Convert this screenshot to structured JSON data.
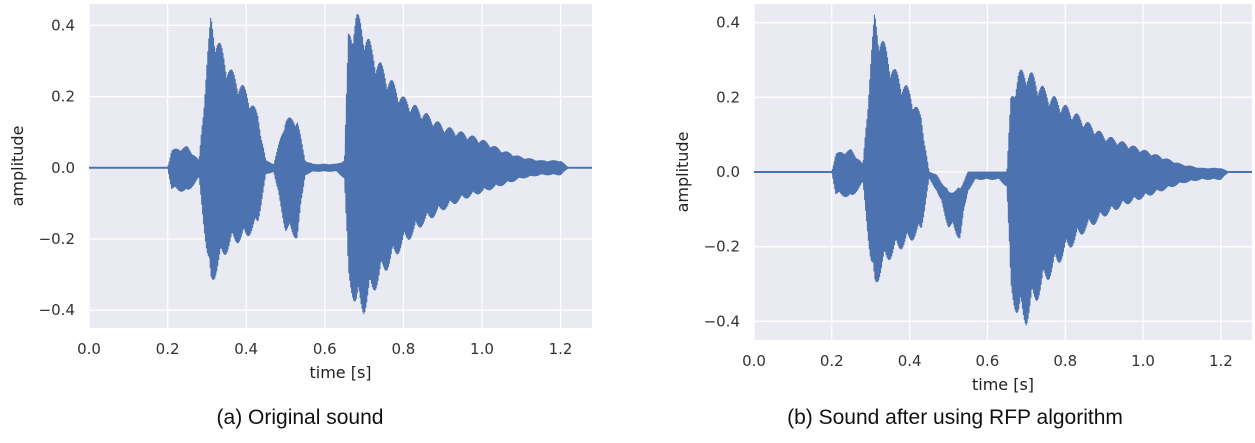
{
  "colors": {
    "background": "#eaeaf2",
    "grid": "#ffffff",
    "line": "#4c72b0"
  },
  "chart_data": [
    {
      "type": "line",
      "caption": "(a) Original sound",
      "xlabel": "time [s]",
      "ylabel": "amplitude",
      "xlim": [
        0.0,
        1.28
      ],
      "ylim": [
        -0.45,
        0.46
      ],
      "xticks": [
        0.0,
        0.2,
        0.4,
        0.6,
        0.8,
        1.0,
        1.2
      ],
      "yticks": [
        -0.4,
        -0.2,
        0.0,
        0.2,
        0.4
      ],
      "xtick_labels": [
        "0.0",
        "0.2",
        "0.4",
        "0.6",
        "0.8",
        "1.0",
        "1.2"
      ],
      "ytick_labels": [
        "−0.4",
        "−0.2",
        "0.0",
        "0.2",
        "0.4"
      ],
      "grid": true,
      "series": [
        {
          "envelope_time": [
            0.0,
            0.2,
            0.21,
            0.25,
            0.28,
            0.3,
            0.31,
            0.33,
            0.36,
            0.4,
            0.43,
            0.45,
            0.47,
            0.5,
            0.53,
            0.55,
            0.57,
            0.6,
            0.63,
            0.65,
            0.66,
            0.68,
            0.7,
            0.72,
            0.75,
            0.8,
            0.85,
            0.9,
            0.95,
            1.0,
            1.05,
            1.1,
            1.15,
            1.2,
            1.22,
            1.28
          ],
          "envelope_upper": [
            0.0,
            0.0,
            0.05,
            0.06,
            0.02,
            0.3,
            0.43,
            0.36,
            0.28,
            0.22,
            0.15,
            0.02,
            0.01,
            0.14,
            0.14,
            0.02,
            0.01,
            0.01,
            0.01,
            0.02,
            0.38,
            0.44,
            0.4,
            0.34,
            0.28,
            0.2,
            0.16,
            0.12,
            0.1,
            0.08,
            0.05,
            0.03,
            0.02,
            0.02,
            0.0,
            0.0
          ],
          "envelope_lower": [
            0.0,
            0.0,
            -0.06,
            -0.07,
            -0.03,
            -0.25,
            -0.34,
            -0.28,
            -0.22,
            -0.2,
            -0.16,
            -0.02,
            -0.01,
            -0.18,
            -0.2,
            -0.02,
            -0.01,
            -0.01,
            -0.01,
            -0.03,
            -0.32,
            -0.4,
            -0.41,
            -0.36,
            -0.3,
            -0.22,
            -0.16,
            -0.12,
            -0.09,
            -0.07,
            -0.05,
            -0.03,
            -0.02,
            -0.02,
            0.0,
            0.0
          ]
        }
      ]
    },
    {
      "type": "line",
      "caption": "(b) Sound after using RFP algorithm",
      "xlabel": "time [s]",
      "ylabel": "amplitude",
      "xlim": [
        0.0,
        1.28
      ],
      "ylim": [
        -0.45,
        0.45
      ],
      "xticks": [
        0.0,
        0.2,
        0.4,
        0.6,
        0.8,
        1.0,
        1.2
      ],
      "yticks": [
        -0.4,
        -0.2,
        0.0,
        0.2,
        0.4
      ],
      "xtick_labels": [
        "0.0",
        "0.2",
        "0.4",
        "0.6",
        "0.8",
        "1.0",
        "1.2"
      ],
      "ytick_labels": [
        "−0.4",
        "−0.2",
        "0.0",
        "0.2",
        "0.4"
      ],
      "grid": true,
      "series": [
        {
          "envelope_time": [
            0.0,
            0.2,
            0.21,
            0.25,
            0.28,
            0.3,
            0.31,
            0.33,
            0.36,
            0.4,
            0.43,
            0.45,
            0.47,
            0.5,
            0.53,
            0.55,
            0.57,
            0.6,
            0.63,
            0.65,
            0.66,
            0.68,
            0.7,
            0.72,
            0.75,
            0.8,
            0.85,
            0.9,
            0.95,
            1.0,
            1.05,
            1.1,
            1.15,
            1.2,
            1.22,
            1.28
          ],
          "envelope_upper": [
            0.0,
            0.0,
            0.05,
            0.06,
            0.02,
            0.3,
            0.43,
            0.36,
            0.28,
            0.22,
            0.15,
            0.0,
            -0.01,
            -0.06,
            -0.05,
            0.0,
            0.0,
            0.0,
            0.0,
            0.0,
            0.2,
            0.27,
            0.28,
            0.26,
            0.22,
            0.18,
            0.14,
            0.1,
            0.08,
            0.06,
            0.04,
            0.02,
            0.01,
            0.01,
            0.0,
            0.0
          ],
          "envelope_lower": [
            0.0,
            0.0,
            -0.06,
            -0.07,
            -0.03,
            -0.25,
            -0.32,
            -0.26,
            -0.22,
            -0.19,
            -0.16,
            -0.02,
            -0.05,
            -0.15,
            -0.18,
            -0.05,
            -0.02,
            -0.02,
            -0.02,
            -0.04,
            -0.33,
            -0.4,
            -0.41,
            -0.36,
            -0.3,
            -0.22,
            -0.16,
            -0.12,
            -0.09,
            -0.07,
            -0.05,
            -0.03,
            -0.02,
            -0.02,
            0.0,
            0.0
          ]
        }
      ]
    }
  ]
}
